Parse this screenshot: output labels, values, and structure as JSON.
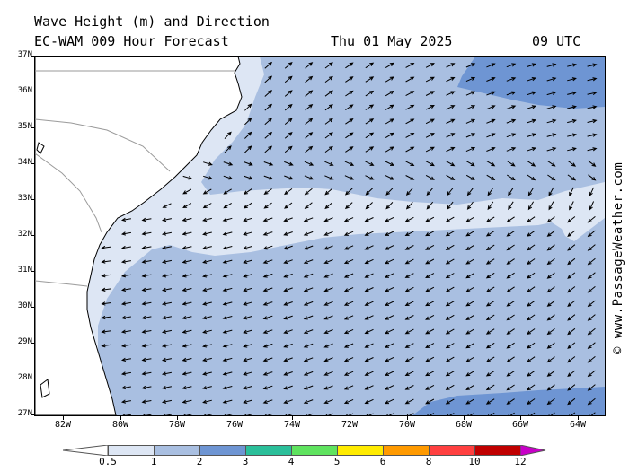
{
  "header": {
    "line1": "Wave Height (m) and Direction",
    "model": "EC-WAM 009 Hour Forecast",
    "date": "Thu 01 May 2025",
    "time": "09 UTC"
  },
  "credit": "© www.PassageWeather.com",
  "axes": {
    "lat_labels": [
      "37N",
      "36N",
      "35N",
      "34N",
      "33N",
      "32N",
      "31N",
      "30N",
      "29N",
      "28N",
      "27N"
    ],
    "lon_labels": [
      "82W",
      "80W",
      "78W",
      "76W",
      "74W",
      "72W",
      "70W",
      "68W",
      "66W",
      "64W"
    ]
  },
  "colors": {
    "land": "#ffffff",
    "band_0_5_1": "#dde6f4",
    "band_1_2": "#a9bfe1",
    "band_2_3": "#6e95d3",
    "coast": "#000000",
    "state_line": "#9a9a9a"
  },
  "legend": {
    "labels": [
      "0.5",
      "1",
      "2",
      "3",
      "4",
      "5",
      "6",
      "8",
      "10",
      "12"
    ],
    "colors": [
      "#dde6f4",
      "#a9bfe1",
      "#6e95d3",
      "#2bbf9a",
      "#5fe35f",
      "#ffeb00",
      "#ff9a00",
      "#ff4040",
      "#c00000",
      "#c800c8"
    ]
  }
}
